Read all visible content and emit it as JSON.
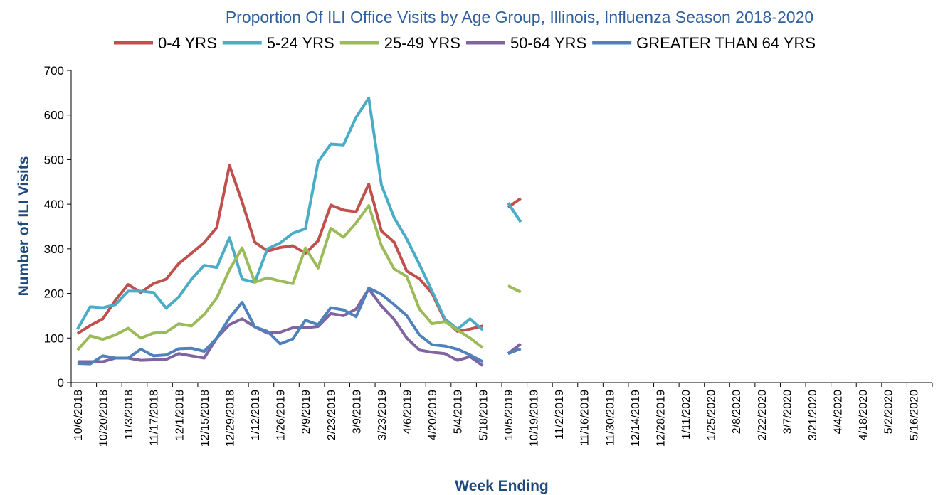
{
  "chart_data": {
    "type": "line",
    "title": "Proportion Of ILI Office Visits by Age Group, Illinois, Influenza Season 2018-2020",
    "x_label": "Week Ending",
    "y_label": "Number of ILI Visits",
    "ylim": [
      0,
      700
    ],
    "yticks": [
      0,
      100,
      200,
      300,
      400,
      500,
      600,
      700
    ],
    "legend": "top",
    "categories": [
      "10/6/2018",
      null,
      "10/20/2018",
      null,
      "11/3/2018",
      null,
      "11/17/2018",
      null,
      "12/1/2018",
      null,
      "12/15/2018",
      null,
      "12/29/2018",
      null,
      "1/12/2019",
      null,
      "1/26/2019",
      null,
      "2/9/2019",
      null,
      "2/23/2019",
      null,
      "3/9/2019",
      null,
      "3/23/2019",
      null,
      "4/6/2019",
      null,
      "4/20/2019",
      null,
      "5/4/2019",
      null,
      "5/18/2019",
      null,
      "10/5/2019",
      null,
      "10/19/2019",
      null,
      "11/2/2019",
      null,
      "11/16/2019",
      null,
      "11/30/2019",
      null,
      "12/14/2019",
      null,
      "12/28/2019",
      null,
      "1/11/2020",
      null,
      "1/25/2020",
      null,
      "2/8/2020",
      null,
      "2/22/2020",
      null,
      "3/7/2020",
      null,
      "3/21/2020",
      null,
      "4/4/2020",
      null,
      "4/18/2020",
      null,
      "5/2/2020",
      null,
      "5/16/2020",
      null
    ],
    "series": [
      {
        "name": "0-4 YRS",
        "color": "#c0504d",
        "values": [
          110,
          128,
          143,
          185,
          220,
          202,
          222,
          232,
          267,
          290,
          314,
          348,
          487,
          405,
          315,
          295,
          303,
          307,
          290,
          318,
          398,
          387,
          383,
          445,
          340,
          315,
          250,
          233,
          200,
          140,
          115,
          120,
          127,
          null,
          393,
          413,
          null,
          null,
          null,
          null,
          null,
          null,
          null,
          null,
          null,
          null,
          null,
          null,
          null,
          null,
          null,
          null,
          null,
          null,
          null,
          null,
          null,
          null,
          null,
          null,
          null,
          null,
          null,
          null,
          null,
          null,
          null,
          null
        ]
      },
      {
        "name": "5-24 YRS",
        "color": "#4bacc6",
        "values": [
          120,
          170,
          168,
          175,
          205,
          205,
          202,
          167,
          192,
          232,
          263,
          258,
          325,
          232,
          225,
          300,
          313,
          335,
          345,
          495,
          535,
          533,
          595,
          638,
          443,
          370,
          322,
          265,
          205,
          143,
          120,
          143,
          118,
          null,
          403,
          360,
          null,
          null,
          null,
          null,
          null,
          null,
          null,
          null,
          null,
          null,
          null,
          null,
          null,
          null,
          null,
          null,
          null,
          null,
          null,
          null,
          null,
          null,
          null,
          null,
          null,
          null,
          null,
          null,
          null,
          null,
          null,
          null
        ]
      },
      {
        "name": "25-49 YRS",
        "color": "#9bbb59",
        "values": [
          73,
          105,
          97,
          107,
          122,
          100,
          111,
          113,
          132,
          127,
          153,
          190,
          253,
          302,
          225,
          235,
          228,
          222,
          302,
          257,
          346,
          326,
          358,
          397,
          307,
          255,
          238,
          165,
          132,
          137,
          118,
          100,
          78,
          null,
          217,
          203,
          null,
          null,
          null,
          null,
          null,
          null,
          null,
          null,
          null,
          null,
          null,
          null,
          null,
          null,
          null,
          null,
          null,
          null,
          null,
          null,
          null,
          null,
          null,
          null,
          null,
          null,
          null,
          null,
          null,
          null,
          null,
          null
        ]
      },
      {
        "name": "50-64 YRS",
        "color": "#8064a2",
        "values": [
          47,
          47,
          47,
          55,
          55,
          50,
          51,
          52,
          65,
          60,
          55,
          100,
          130,
          143,
          125,
          111,
          113,
          123,
          123,
          126,
          155,
          150,
          165,
          210,
          172,
          142,
          100,
          73,
          68,
          65,
          50,
          58,
          38,
          null,
          65,
          87,
          null,
          null,
          null,
          null,
          null,
          null,
          null,
          null,
          null,
          null,
          null,
          null,
          null,
          null,
          null,
          null,
          null,
          null,
          null,
          null,
          null,
          null,
          null,
          null,
          null,
          null,
          null,
          null,
          null,
          null,
          null,
          null
        ]
      },
      {
        "name": "GREATER THAN 64 YRS",
        "color": "#4f81bd",
        "values": [
          43,
          42,
          60,
          55,
          55,
          75,
          60,
          62,
          76,
          77,
          70,
          100,
          145,
          180,
          125,
          115,
          87,
          98,
          140,
          130,
          168,
          163,
          148,
          212,
          198,
          175,
          150,
          107,
          85,
          82,
          75,
          62,
          47,
          null,
          65,
          76,
          null,
          null,
          null,
          null,
          null,
          null,
          null,
          null,
          null,
          null,
          null,
          null,
          null,
          null,
          null,
          null,
          null,
          null,
          null,
          null,
          null,
          null,
          null,
          null,
          null,
          null,
          null,
          null,
          null,
          null,
          null,
          null
        ]
      }
    ]
  }
}
